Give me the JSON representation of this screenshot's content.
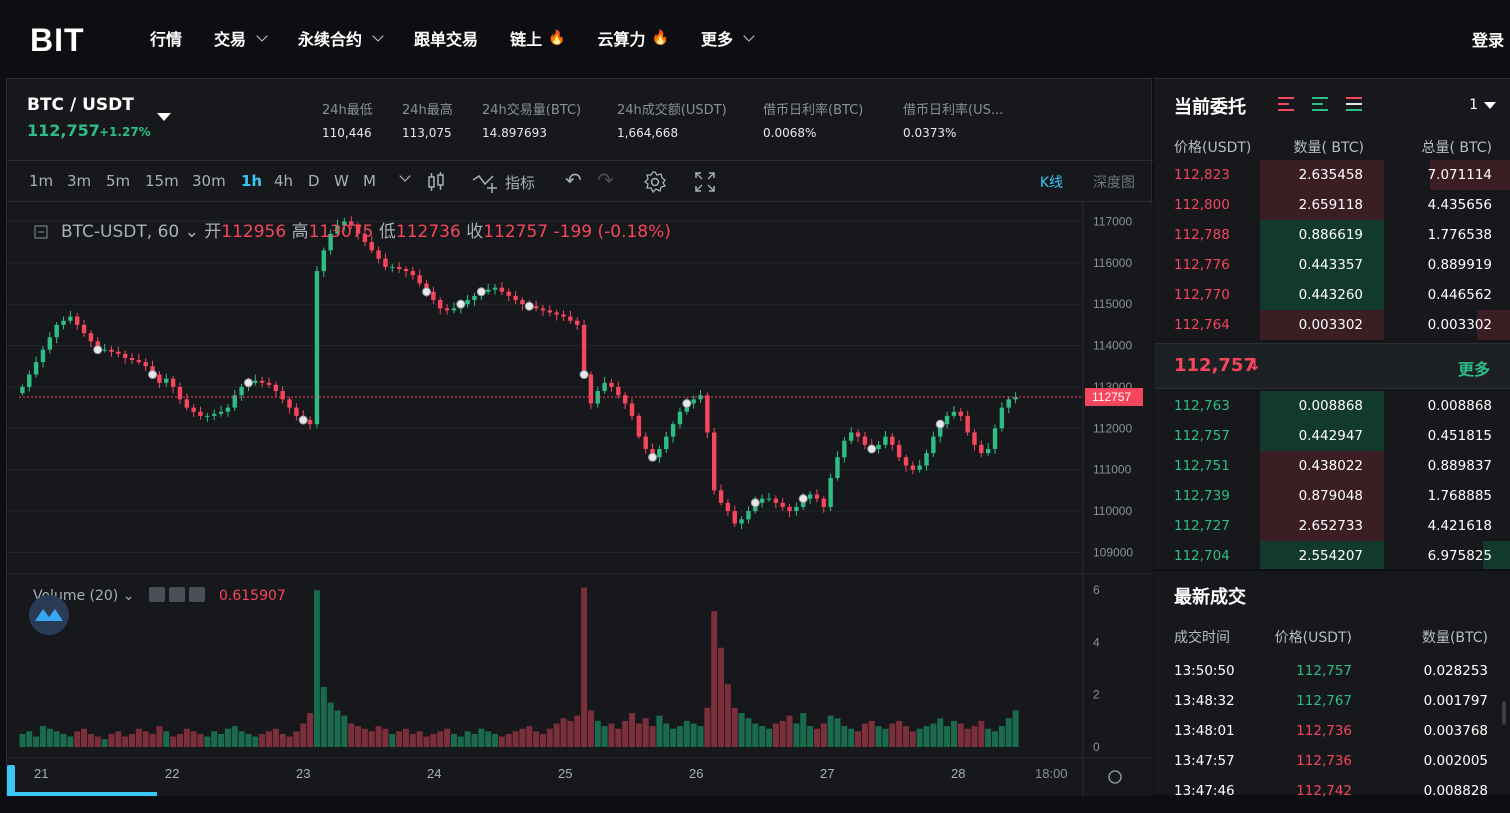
{
  "nav": {
    "logo": "BIT",
    "items": [
      {
        "label": "行情",
        "chev": false,
        "fire": false
      },
      {
        "label": "交易",
        "chev": true,
        "fire": false
      },
      {
        "label": "永续合约",
        "chev": true,
        "fire": false
      },
      {
        "label": "跟单交易",
        "chev": false,
        "fire": false
      },
      {
        "label": "链上",
        "chev": false,
        "fire": true
      },
      {
        "label": "云算力",
        "chev": false,
        "fire": true
      },
      {
        "label": "更多",
        "chev": true,
        "fire": false
      }
    ],
    "login": "登录"
  },
  "ticker": {
    "pair": "BTC / USDT",
    "price": "112,757",
    "change": "+1.27%",
    "stats": [
      {
        "label": "24h最低",
        "value": "110,446"
      },
      {
        "label": "24h最高",
        "value": "113,075"
      },
      {
        "label": "24h交易量(BTC)",
        "value": "14.897693"
      },
      {
        "label": "24h成交额(USDT)",
        "value": "1,664,668"
      },
      {
        "label": "借币日利率(BTC)",
        "value": "0.0068%"
      },
      {
        "label": "借币日利率(US...",
        "value": "0.0373%"
      }
    ]
  },
  "toolbar": {
    "intervals": [
      "1m",
      "3m",
      "5m",
      "15m",
      "30m",
      "1h",
      "4h",
      "D",
      "W",
      "M"
    ],
    "active": "1h",
    "indicator": "指标",
    "kline": "K线",
    "depth": "深度图"
  },
  "chart_data": {
    "type": "candlestick",
    "symbol": "BTC-USDT, 60",
    "legend": {
      "open_label": "开",
      "open": "112956",
      "high_label": "高",
      "high": "113075",
      "low_label": "低",
      "low": "112736",
      "close_label": "收",
      "close": "112757",
      "change": "-199 (-0.18%)"
    },
    "y_ticks": [
      117000,
      116000,
      115000,
      114000,
      113000,
      112000,
      111000,
      110000,
      109000
    ],
    "ylim": [
      108600,
      117300
    ],
    "last_price": "112757",
    "x_ticks": [
      "21",
      "22",
      "23",
      "24",
      "25",
      "26",
      "27",
      "28",
      "18:00"
    ],
    "volume": {
      "label": "Volume (20)",
      "value": "0.615907",
      "y_ticks": [
        6,
        4,
        2,
        0
      ],
      "ylim": [
        0,
        6.2
      ]
    },
    "series_close": [
      113000,
      113300,
      113600,
      113900,
      114200,
      114500,
      114600,
      114700,
      114500,
      114300,
      114100,
      113900,
      113900,
      113850,
      113800,
      113700,
      113650,
      113600,
      113500,
      113300,
      113100,
      113200,
      113000,
      112700,
      112500,
      112400,
      112300,
      112300,
      112350,
      112400,
      112500,
      112800,
      113000,
      113100,
      113150,
      113100,
      113050,
      112900,
      112700,
      112500,
      112300,
      112200,
      112100,
      115800,
      116300,
      116700,
      116900,
      117000,
      116900,
      116700,
      116500,
      116300,
      116100,
      115900,
      115900,
      115850,
      115800,
      115700,
      115500,
      115300,
      115100,
      114900,
      114850,
      114900,
      115000,
      115100,
      115200,
      115300,
      115350,
      115400,
      115300,
      115200,
      115100,
      115000,
      114950,
      114900,
      114850,
      114800,
      114750,
      114700,
      114600,
      114500,
      113300,
      112600,
      112900,
      113100,
      113000,
      112800,
      112600,
      112300,
      111800,
      111500,
      111300,
      111500,
      111800,
      112100,
      112400,
      112600,
      112700,
      112800,
      111900,
      110500,
      110200,
      110000,
      109700,
      109800,
      110000,
      110200,
      110300,
      110300,
      110200,
      110100,
      110000,
      110100,
      110300,
      110400,
      110300,
      110100,
      110800,
      111300,
      111700,
      111900,
      111800,
      111600,
      111500,
      111600,
      111800,
      111600,
      111300,
      111100,
      111000,
      111100,
      111400,
      111800,
      112100,
      112300,
      112400,
      112300,
      111900,
      111600,
      111400,
      111500,
      112000,
      112500,
      112700,
      112757
    ],
    "volume_values": [
      0.5,
      0.6,
      0.4,
      0.8,
      0.7,
      0.6,
      0.5,
      0.4,
      0.6,
      0.7,
      0.5,
      0.4,
      0.3,
      0.5,
      0.6,
      0.4,
      0.5,
      0.7,
      0.6,
      0.5,
      0.8,
      0.6,
      0.4,
      0.5,
      0.7,
      0.6,
      0.5,
      0.4,
      0.6,
      0.5,
      0.7,
      0.8,
      0.6,
      0.5,
      0.4,
      0.5,
      0.6,
      0.7,
      0.5,
      0.4,
      0.6,
      0.9,
      1.3,
      6.0,
      2.3,
      1.7,
      1.4,
      1.2,
      0.9,
      0.8,
      0.7,
      0.6,
      0.8,
      0.7,
      0.5,
      0.6,
      0.7,
      0.5,
      0.6,
      0.4,
      0.5,
      0.6,
      0.7,
      0.5,
      0.4,
      0.6,
      0.5,
      0.7,
      0.6,
      0.5,
      0.4,
      0.5,
      0.6,
      0.7,
      0.8,
      0.6,
      0.5,
      0.7,
      0.9,
      1.1,
      1.0,
      1.2,
      6.1,
      1.4,
      1.0,
      0.8,
      0.9,
      0.7,
      1.0,
      1.3,
      0.9,
      1.1,
      0.8,
      1.2,
      0.9,
      0.7,
      0.8,
      1.0,
      0.9,
      0.8,
      1.5,
      5.2,
      3.8,
      2.4,
      1.5,
      1.3,
      1.1,
      0.9,
      0.8,
      0.7,
      0.9,
      1.0,
      1.2,
      0.9,
      1.3,
      0.8,
      0.7,
      0.9,
      1.2,
      1.1,
      0.8,
      0.7,
      0.6,
      0.9,
      1.0,
      0.8,
      0.7,
      0.9,
      1.0,
      0.8,
      0.6,
      0.7,
      0.8,
      0.9,
      1.1,
      0.8,
      1.0,
      0.9,
      0.7,
      0.8,
      1.0,
      0.7,
      0.6,
      0.8,
      1.1,
      1.4,
      0.9,
      0.6
    ]
  },
  "orderbook": {
    "title": "当前委托",
    "precision": "1",
    "headers": {
      "price": "价格(USDT)",
      "qty": "数量( BTC)",
      "total": "总量( BTC)"
    },
    "asks": [
      {
        "price": "112,823",
        "qty": "2.635458",
        "total": "7.071114",
        "depth": 0.8
      },
      {
        "price": "112,800",
        "qty": "2.659118",
        "total": "4.435656",
        "depth": 0.56
      },
      {
        "price": "112,788",
        "qty": "0.886619",
        "total": "1.776538",
        "depth": 0.33
      },
      {
        "price": "112,776",
        "qty": "0.443357",
        "total": "0.889919",
        "depth": 0.33
      },
      {
        "price": "112,770",
        "qty": "0.443260",
        "total": "0.446562",
        "depth": 0.33
      },
      {
        "price": "112,764",
        "qty": "0.003302",
        "total": "0.003302",
        "depth": 0.33
      }
    ],
    "mid_price": "112,757",
    "mid_arrow": "↓",
    "more": "更多",
    "bids": [
      {
        "price": "112,763",
        "qty": "0.008868",
        "total": "0.008868",
        "depth": 0.33
      },
      {
        "price": "112,757",
        "qty": "0.442947",
        "total": "0.451815",
        "depth": 0.33
      },
      {
        "price": "112,751",
        "qty": "0.438022",
        "total": "0.889837",
        "depth": 0.33
      },
      {
        "price": "112,739",
        "qty": "0.879048",
        "total": "1.768885",
        "depth": 0.33
      },
      {
        "price": "112,727",
        "qty": "2.652733",
        "total": "4.421618",
        "depth": 0.33
      },
      {
        "price": "112,704",
        "qty": "2.554207",
        "total": "6.975825",
        "depth": 0.27
      }
    ]
  },
  "trades": {
    "title": "最新成交",
    "headers": {
      "time": "成交时间",
      "price": "价格(USDT)",
      "qty": "数量(BTC)"
    },
    "rows": [
      {
        "time": "13:50:50",
        "price": "112,757",
        "qty": "0.028253",
        "side": "buy"
      },
      {
        "time": "13:48:32",
        "price": "112,767",
        "qty": "0.001797",
        "side": "buy"
      },
      {
        "time": "13:48:01",
        "price": "112,736",
        "qty": "0.003768",
        "side": "sell"
      },
      {
        "time": "13:47:57",
        "price": "112,736",
        "qty": "0.002005",
        "side": "sell"
      },
      {
        "time": "13:47:46",
        "price": "112,742",
        "qty": "0.008828",
        "side": "sell"
      }
    ]
  },
  "colors": {
    "up": "#2ebd85",
    "down": "#f6465d",
    "accent": "#38c6f4"
  }
}
